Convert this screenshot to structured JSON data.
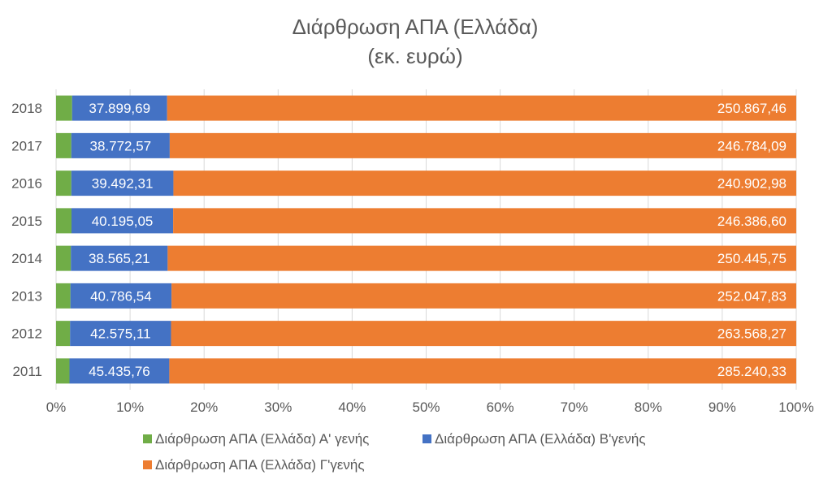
{
  "chart_data": {
    "type": "bar",
    "orientation": "horizontal",
    "stacked": "percent",
    "title": "Διάρθρωση ΑΠΑ (Ελλάδα)",
    "subtitle": "(εκ. ευρώ)",
    "categories": [
      "2011",
      "2012",
      "2013",
      "2014",
      "2015",
      "2016",
      "2017",
      "2018"
    ],
    "series": [
      {
        "name": "Διάρθρωση ΑΠΑ (Ελλάδα) Α' γενής",
        "color": "#70AD47",
        "values": [
          6100,
          5900,
          5800,
          5900,
          6100,
          5900,
          6000,
          6400
        ],
        "labels": [
          "",
          "",
          "",
          "",
          "",
          "",
          "",
          ""
        ]
      },
      {
        "name": "Διάρθρωση ΑΠΑ (Ελλάδα) Β'γενής",
        "color": "#4472C4",
        "values": [
          45435.76,
          42575.11,
          40786.54,
          38565.21,
          40195.05,
          39492.31,
          38772.57,
          37899.69
        ],
        "labels": [
          "45.435,76",
          "42.575,11",
          "40.786,54",
          "38.565,21",
          "40.195,05",
          "39.492,31",
          "38.772,57",
          "37.899,69"
        ]
      },
      {
        "name": "Διάρθρωση ΑΠΑ (Ελλάδα) Γ'γενής",
        "color": "#ED7D31",
        "values": [
          285240.33,
          263568.27,
          252047.83,
          250445.75,
          246386.6,
          240902.98,
          246784.09,
          250867.46
        ],
        "labels": [
          "285.240,33",
          "263.568,27",
          "252.047,83",
          "250.445,75",
          "246.386,60",
          "240.902,98",
          "246.784,09",
          "250.867,46"
        ]
      }
    ],
    "x_ticks": [
      "0%",
      "10%",
      "20%",
      "30%",
      "40%",
      "50%",
      "60%",
      "70%",
      "80%",
      "90%",
      "100%"
    ],
    "xlim": [
      0,
      100
    ],
    "grid": true,
    "legend_position": "bottom"
  }
}
